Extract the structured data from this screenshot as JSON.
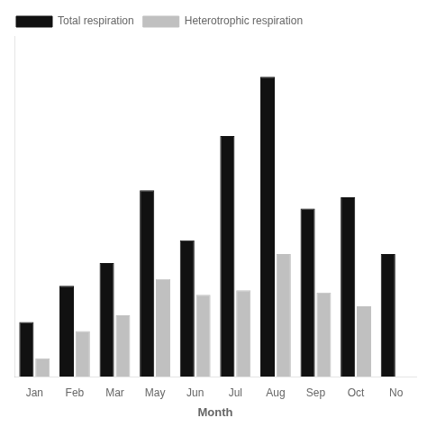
{
  "chart_data": {
    "type": "bar",
    "xlabel": "Month",
    "categories": [
      "Jan",
      "Feb",
      "Mar",
      "May",
      "Jun",
      "Jul",
      "Aug",
      "Sep",
      "Oct",
      "No"
    ],
    "series": [
      {
        "name": "Total respiration",
        "color": "#111111",
        "values": [
          1.2,
          2.0,
          2.5,
          4.1,
          3.0,
          5.3,
          6.6,
          3.7,
          3.95,
          2.7
        ]
      },
      {
        "name": "Heterotrophic respiration",
        "color": "#c0c0c0",
        "values": [
          0.4,
          1.0,
          1.35,
          2.15,
          1.8,
          1.9,
          2.7,
          1.85,
          1.55,
          0.0
        ]
      }
    ],
    "ylim": [
      0,
      7.5
    ],
    "yticks": [
      0,
      1,
      2,
      3,
      4,
      5,
      6,
      7
    ],
    "grid": false,
    "legend": "upper left",
    "tick_labels": "x"
  }
}
